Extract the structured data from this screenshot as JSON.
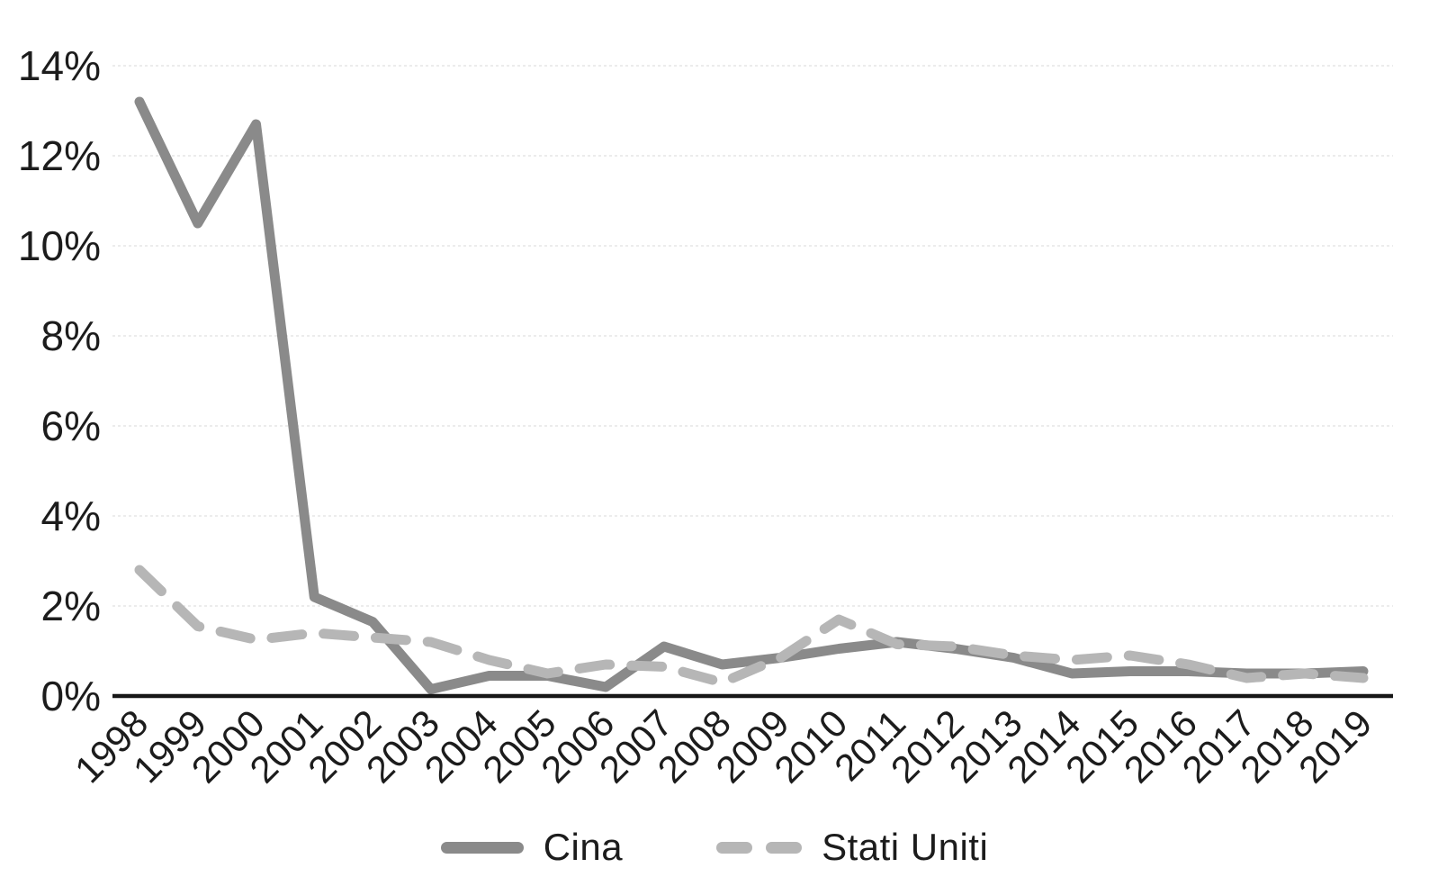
{
  "chart_data": {
    "type": "line",
    "title": "",
    "xlabel": "",
    "ylabel": "",
    "unit": "%",
    "x_tick_labels": [
      "1998",
      "1999",
      "2000",
      "2001",
      "2002",
      "2003",
      "2004",
      "2005",
      "2006",
      "2007",
      "2008",
      "2009",
      "2010",
      "2011",
      "2012",
      "2013",
      "2014",
      "2015",
      "2016",
      "2017",
      "2018",
      "2019"
    ],
    "y_tick_labels": [
      "0%",
      "2%",
      "4%",
      "6%",
      "8%",
      "10%",
      "12%",
      "14%"
    ],
    "y_tick_values": [
      0,
      2,
      4,
      6,
      8,
      10,
      12,
      14
    ],
    "ylim": [
      0,
      14.5
    ],
    "grid": "horizontal-light-dotted",
    "legend_position": "bottom-center",
    "series": [
      {
        "name": "Cina",
        "style": "solid",
        "color": "#8a8a8a",
        "values": [
          13.2,
          10.5,
          12.7,
          2.2,
          1.65,
          0.15,
          0.45,
          0.45,
          0.2,
          1.1,
          0.7,
          0.85,
          1.05,
          1.2,
          1.05,
          0.85,
          0.5,
          0.55,
          0.55,
          0.5,
          0.5,
          0.55
        ]
      },
      {
        "name": "Stati Uniti",
        "style": "dashed",
        "color": "#b6b6b6",
        "values": [
          2.8,
          1.55,
          1.25,
          1.4,
          1.3,
          1.2,
          0.8,
          0.5,
          0.7,
          0.65,
          0.3,
          0.85,
          1.7,
          1.15,
          1.1,
          0.9,
          0.8,
          0.9,
          0.7,
          0.4,
          0.5,
          0.4
        ]
      }
    ]
  },
  "colors": {
    "axis": "#161616",
    "gridline": "#e5e5e5",
    "tick_text": "#1c1c1c"
  }
}
